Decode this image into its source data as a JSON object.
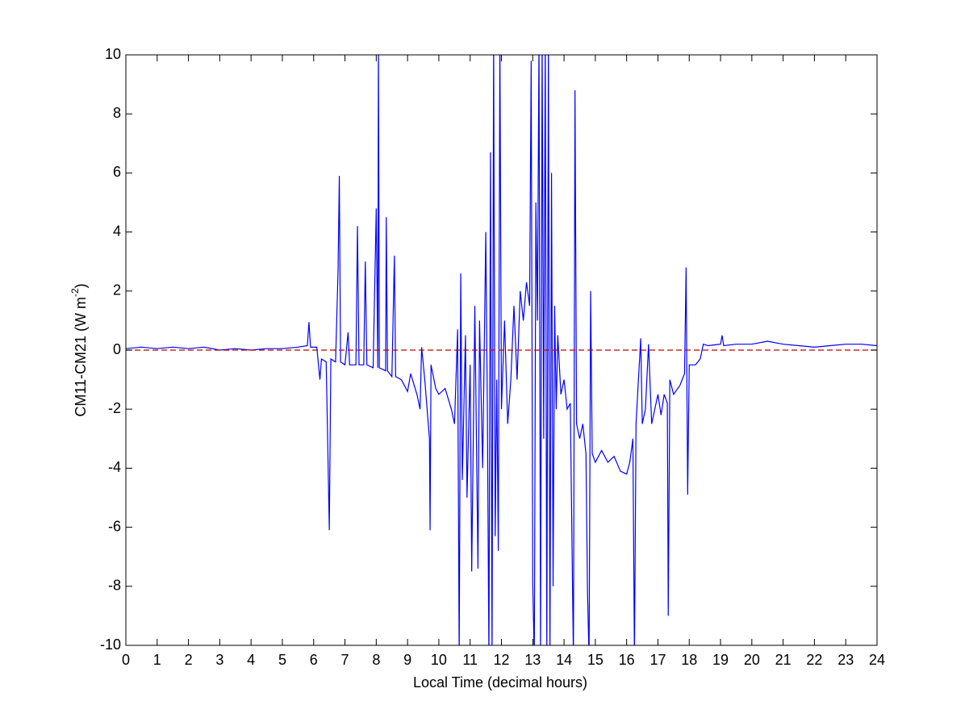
{
  "chart_data": {
    "type": "line",
    "xlabel": "Local Time (decimal hours)",
    "ylabel": {
      "text": "CM11-CM21 (W m",
      "superscript": "-2",
      "suffix": ")"
    },
    "xlim": [
      0,
      24
    ],
    "ylim": [
      -10,
      10
    ],
    "xticks": [
      0,
      1,
      2,
      3,
      4,
      5,
      6,
      7,
      8,
      9,
      10,
      11,
      12,
      13,
      14,
      15,
      16,
      17,
      18,
      19,
      20,
      21,
      22,
      23,
      24
    ],
    "yticks": [
      -10,
      -8,
      -6,
      -4,
      -2,
      0,
      2,
      4,
      6,
      8,
      10
    ],
    "reference_line": {
      "value": 0,
      "color": "#c00000",
      "style": "dashed"
    },
    "series": [
      {
        "color": "#0000ff",
        "x": [
          0,
          0.5,
          1,
          1.5,
          2,
          2.5,
          3,
          3.5,
          4,
          4.5,
          5,
          5.5,
          5.8,
          5.85,
          5.9,
          6.1,
          6.2,
          6.25,
          6.4,
          6.45,
          6.5,
          6.55,
          6.7,
          6.78,
          6.82,
          6.86,
          7.0,
          7.1,
          7.15,
          7.35,
          7.4,
          7.45,
          7.6,
          7.65,
          7.7,
          7.9,
          8.0,
          8.05,
          8.07,
          8.1,
          8.3,
          8.32,
          8.36,
          8.5,
          8.58,
          8.62,
          8.8,
          9.0,
          9.1,
          9.3,
          9.4,
          9.45,
          9.55,
          9.7,
          9.72,
          9.75,
          9.9,
          10.0,
          10.2,
          10.4,
          10.5,
          10.6,
          10.65,
          10.7,
          10.75,
          10.85,
          10.9,
          11.0,
          11.05,
          11.15,
          11.25,
          11.3,
          11.4,
          11.5,
          11.55,
          11.6,
          11.65,
          11.7,
          11.75,
          11.8,
          11.85,
          11.9,
          11.95,
          12.0,
          12.1,
          12.2,
          12.3,
          12.4,
          12.5,
          12.6,
          12.7,
          12.8,
          12.9,
          12.95,
          13.0,
          13.05,
          13.1,
          13.15,
          13.2,
          13.25,
          13.3,
          13.35,
          13.4,
          13.45,
          13.5,
          13.55,
          13.6,
          13.65,
          13.7,
          13.75,
          13.8,
          13.9,
          14.0,
          14.1,
          14.2,
          14.3,
          14.35,
          14.4,
          14.5,
          14.6,
          14.7,
          14.75,
          14.8,
          14.85,
          14.9,
          15.0,
          15.2,
          15.4,
          15.6,
          15.8,
          16.0,
          16.1,
          16.2,
          16.25,
          16.3,
          16.45,
          16.5,
          16.6,
          16.7,
          16.8,
          16.9,
          17.0,
          17.1,
          17.2,
          17.3,
          17.33,
          17.38,
          17.5,
          17.7,
          17.85,
          17.9,
          17.95,
          18.0,
          18.2,
          18.35,
          18.45,
          18.6,
          19.0,
          19.05,
          19.1,
          19.5,
          20.0,
          20.5,
          21.0,
          21.5,
          22.0,
          22.5,
          23.0,
          23.5,
          24.0
        ],
        "values": [
          0.05,
          0.1,
          0.05,
          0.1,
          0.05,
          0.1,
          0.0,
          0.05,
          0.0,
          0.05,
          0.05,
          0.1,
          0.15,
          0.95,
          0.1,
          0.1,
          -1.0,
          -0.3,
          -0.4,
          -3.2,
          -6.1,
          -0.3,
          -0.4,
          2.7,
          5.9,
          -0.4,
          -0.5,
          0.6,
          -0.5,
          -0.5,
          4.2,
          -0.5,
          -0.5,
          3.0,
          -0.5,
          -0.6,
          4.8,
          -0.6,
          10.5,
          -0.6,
          -0.7,
          4.5,
          -0.7,
          -0.9,
          3.2,
          -0.9,
          -1.0,
          -1.4,
          -0.8,
          -1.5,
          -2.0,
          0.1,
          -1.0,
          -3.0,
          -6.1,
          -0.5,
          -1.3,
          -1.5,
          -1.3,
          -2.0,
          -2.5,
          0.7,
          -10.5,
          2.6,
          -4.4,
          0.5,
          -5.0,
          -0.5,
          -7.5,
          1.5,
          -7.4,
          1.0,
          -4.0,
          4.0,
          -2.0,
          -10.5,
          6.7,
          -10.5,
          10.5,
          -6.3,
          -1.0,
          -6.8,
          10.5,
          -2.0,
          1.0,
          -2.5,
          -1.0,
          1.5,
          -1.0,
          2.0,
          1.0,
          2.3,
          1.5,
          9.8,
          -7.9,
          -10.5,
          5.0,
          1.0,
          10.5,
          -10.5,
          10.5,
          -3.0,
          10.5,
          -10.5,
          10.5,
          -10.5,
          6.0,
          -8.0,
          1.5,
          -2.0,
          0.5,
          -1.5,
          -1.0,
          -2.0,
          -1.8,
          -10.5,
          8.8,
          -2.5,
          -3.0,
          -2.5,
          -3.5,
          -8.2,
          -10.5,
          2.0,
          -3.5,
          -3.8,
          -3.4,
          -3.8,
          -3.6,
          -4.1,
          -4.2,
          -3.8,
          -3.0,
          -10.5,
          -2.5,
          0.4,
          -2.5,
          -2.0,
          0.2,
          -2.5,
          -2.0,
          -1.5,
          -2.2,
          -1.5,
          -1.8,
          -9.0,
          -1.0,
          -1.5,
          -1.2,
          -0.8,
          2.8,
          -4.9,
          -0.5,
          -0.5,
          -0.3,
          0.2,
          0.15,
          0.2,
          0.5,
          0.15,
          0.2,
          0.2,
          0.3,
          0.2,
          0.15,
          0.1,
          0.15,
          0.2,
          0.2,
          0.15
        ]
      }
    ]
  }
}
